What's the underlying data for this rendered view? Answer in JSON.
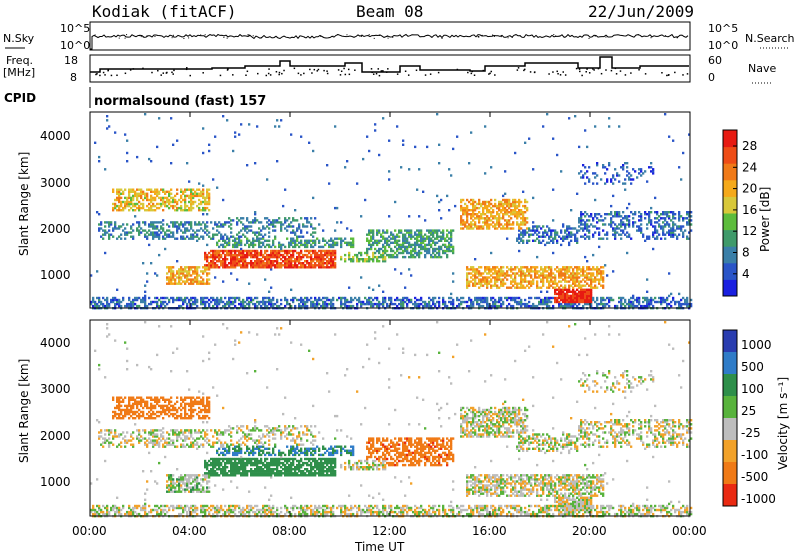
{
  "header": {
    "title": "Kodiak (fitACF)",
    "beam": "Beam 08",
    "date": "22/Jun/2009"
  },
  "strip_labels": {
    "n_sky": "N.Sky",
    "n_search": "N.Search",
    "freq": "Freq.",
    "freq_unit": "[MHz]",
    "nave": "Nave",
    "cpid": "CPID",
    "cpid_value": "normalsound (fast) 157",
    "noise_ticks": [
      "10^5",
      "10^0"
    ],
    "freq_ticks": [
      "18",
      "8"
    ],
    "nave_ticks": [
      "60",
      "0"
    ]
  },
  "chart_data": [
    {
      "type": "heatmap",
      "name": "power",
      "ylabel": "Slant Range [km]",
      "yticks": [
        "4000",
        "3000",
        "2000",
        "1000"
      ],
      "ylim": [
        180,
        4500
      ],
      "colorbar": {
        "label": "Power [dB]",
        "ticks": [
          "28",
          "24",
          "20",
          "16",
          "12",
          "8",
          "4"
        ],
        "range": [
          0,
          30
        ],
        "colors": [
          "#1a20e0",
          "#2a55c8",
          "#3a7fa8",
          "#3f9a6a",
          "#5cbc3c",
          "#d8c83a",
          "#f5a91a",
          "#f07a18",
          "#ee4c16",
          "#e71a12"
        ]
      }
    },
    {
      "type": "heatmap",
      "name": "velocity",
      "ylabel": "Slant Range [km]",
      "yticks": [
        "4000",
        "3000",
        "2000",
        "1000"
      ],
      "ylim": [
        180,
        4500
      ],
      "xticks": [
        "00:00",
        "04:00",
        "08:00",
        "12:00",
        "16:00",
        "20:00",
        "00:00"
      ],
      "xlabel": "Time UT",
      "colorbar": {
        "label": "Velocity [m s⁻¹]",
        "ticks": [
          "1000",
          "500",
          "100",
          "25",
          "-25",
          "-100",
          "-500",
          "-1000"
        ],
        "colors": [
          "#2a3db0",
          "#2f7cc8",
          "#2e8f4a",
          "#58b33c",
          "#bdbdbd",
          "#f2a22a",
          "#f07a16",
          "#ea2a12"
        ]
      }
    }
  ]
}
